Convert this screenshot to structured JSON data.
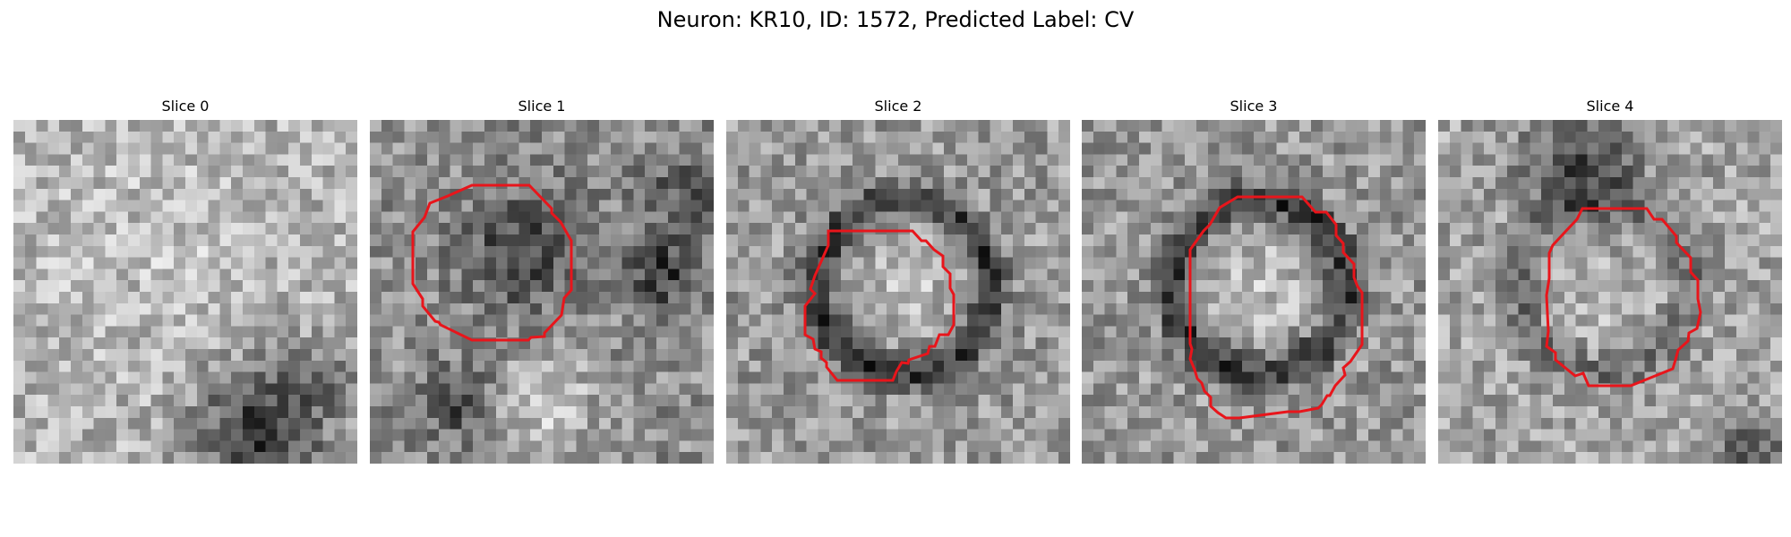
{
  "figure": {
    "title": "Neuron: KR10, ID: 1572, Predicted Label: CV"
  },
  "slices": [
    {
      "title": "Slice 0",
      "has_contour": false,
      "brightness_pattern": "bright-top-dark-bottom-right"
    },
    {
      "title": "Slice 1",
      "has_contour": true,
      "brightness_pattern": "dark-center-bright-bottom"
    },
    {
      "title": "Slice 2",
      "has_contour": true,
      "brightness_pattern": "bright-center-dark-ring"
    },
    {
      "title": "Slice 3",
      "has_contour": true,
      "brightness_pattern": "bright-center-dark-ring"
    },
    {
      "title": "Slice 4",
      "has_contour": true,
      "brightness_pattern": "medium-center-dark-top"
    }
  ],
  "colors": {
    "contour": "#e8151b",
    "background": "#ffffff",
    "text": "#000000"
  }
}
